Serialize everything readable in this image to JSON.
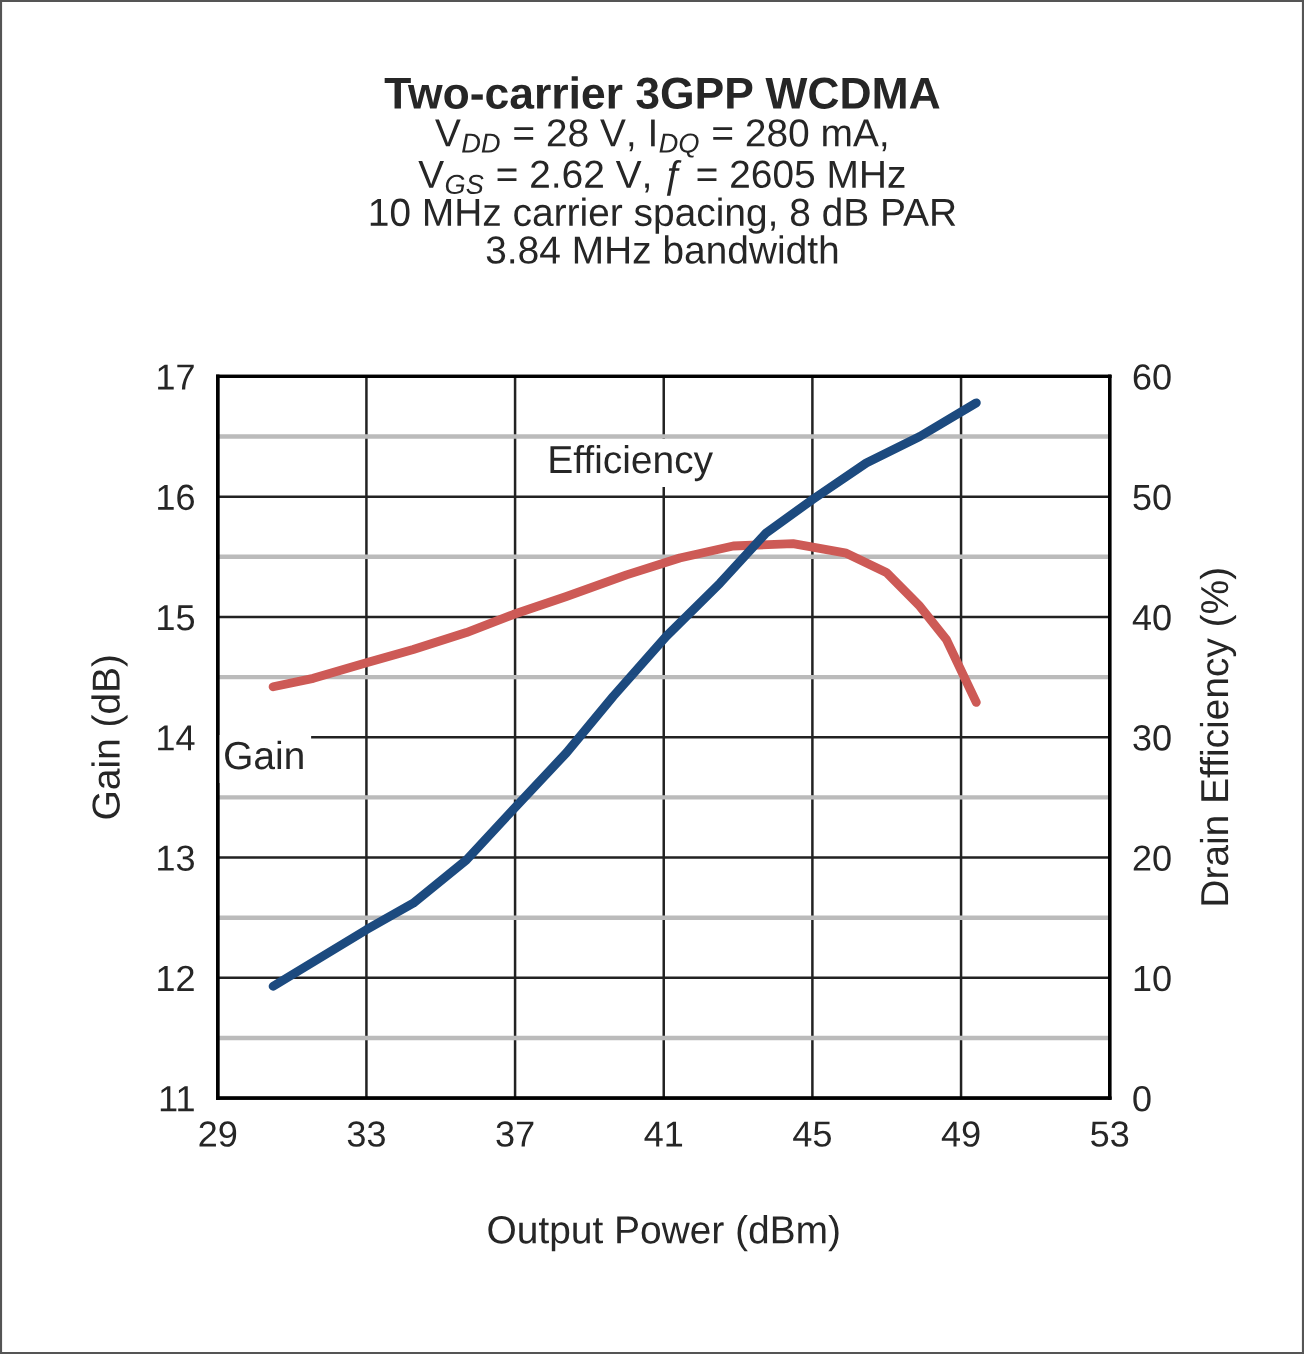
{
  "chart_data": {
    "type": "line",
    "title": "Two-carrier 3GPP WCDMA",
    "subtitle": "V$_{DD}$ = 28 V, I$_{DQ}$ = 280 mA,\nV$_{GS}$ = 2.62 V, ƒ = 2605 MHz\n10 MHz carrier spacing, 8 dB PAR\n3.84 MHz bandwidth",
    "xlabel": "Output Power (dBm)",
    "ylabel": "Gain (dB)",
    "y2label": "Drain Efficiency (%)",
    "series": [
      {
        "name": "Gain",
        "color": "#cd5a56",
        "x": [
          30.49,
          31.57,
          33.0,
          34.26,
          35.69,
          36.95,
          38.38,
          40.0,
          41.43,
          42.87,
          44.48,
          45.91,
          46.99,
          47.89,
          48.61,
          49.41
        ],
        "values": [
          14.42,
          14.49,
          14.62,
          14.73,
          14.87,
          15.02,
          15.17,
          15.35,
          15.49,
          15.59,
          15.61,
          15.53,
          15.37,
          15.09,
          14.81,
          14.29
        ]
      },
      {
        "name": "Efficiency",
        "color": "#1c4a7f",
        "axis": "y2",
        "x": [
          30.49,
          33.0,
          34.26,
          35.69,
          36.95,
          38.38,
          39.64,
          41.07,
          42.51,
          43.76,
          45.02,
          46.45,
          47.89,
          49.41
        ],
        "values": [
          9.3,
          14.0,
          16.2,
          19.8,
          24.0,
          28.7,
          33.4,
          38.4,
          42.8,
          47.0,
          49.8,
          52.8,
          55.0,
          57.8
        ]
      }
    ],
    "xlim": [
      29,
      53
    ],
    "xticks": [
      29,
      33,
      37,
      41,
      45,
      49,
      53
    ],
    "ylim": [
      11,
      17
    ],
    "yticks": [
      11,
      {
        "value": 11.5,
        "label": null
      },
      12,
      {
        "value": 12.5,
        "label": null
      },
      13,
      {
        "value": 13.5,
        "label": null
      },
      14,
      {
        "value": 14.5,
        "label": null
      },
      15,
      {
        "value": 15.5,
        "label": null
      },
      16,
      {
        "value": 16.5,
        "label": null
      },
      17
    ],
    "y2lim": [
      0,
      60
    ],
    "y2ticks": [
      0,
      10,
      20,
      30,
      40,
      50,
      60
    ],
    "grid": true,
    "line_style": "solid"
  }
}
